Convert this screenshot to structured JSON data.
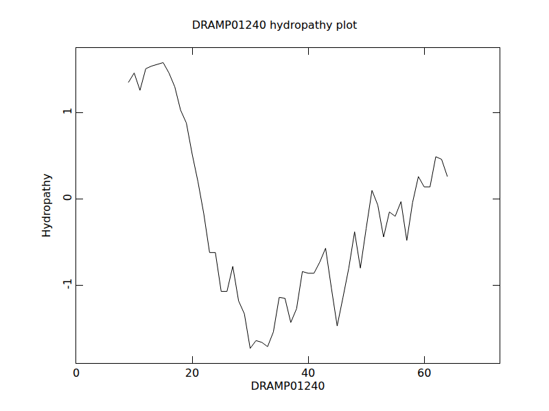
{
  "chart_data": {
    "type": "line",
    "title": "DRAMP01240 hydropathy plot",
    "x_label": "DRAMP01240",
    "y_label": "Hydropathy",
    "x": [
      9,
      10,
      11,
      12,
      13,
      14,
      15,
      16,
      17,
      18,
      19,
      20,
      21,
      22,
      23,
      24,
      25,
      26,
      27,
      28,
      29,
      30,
      31,
      32,
      33,
      34,
      35,
      36,
      37,
      38,
      39,
      40,
      41,
      42,
      43,
      44,
      45,
      46,
      47,
      48,
      49,
      50,
      51,
      52,
      53,
      54,
      55,
      56,
      57,
      58,
      59,
      60,
      61,
      62,
      63,
      64
    ],
    "values": [
      1.35,
      1.46,
      1.26,
      1.51,
      1.54,
      1.56,
      1.58,
      1.46,
      1.3,
      1.03,
      0.88,
      0.52,
      0.2,
      -0.17,
      -0.62,
      -0.62,
      -1.07,
      -1.07,
      -0.78,
      -1.18,
      -1.33,
      -1.73,
      -1.64,
      -1.66,
      -1.71,
      -1.54,
      -1.14,
      -1.15,
      -1.43,
      -1.27,
      -0.84,
      -0.86,
      -0.86,
      -0.73,
      -0.57,
      -1.03,
      -1.47,
      -1.14,
      -0.8,
      -0.38,
      -0.8,
      -0.34,
      0.1,
      -0.07,
      -0.44,
      -0.15,
      -0.2,
      -0.03,
      -0.48,
      -0.04,
      0.26,
      0.14,
      0.14,
      0.49,
      0.46,
      0.26
    ],
    "color": "#000000",
    "xlim": [
      0,
      73
    ],
    "ylim": [
      -1.9,
      1.75
    ],
    "xticks": [
      0,
      20,
      40,
      60
    ],
    "yticks": [
      -1,
      0,
      1
    ],
    "grid": false
  }
}
